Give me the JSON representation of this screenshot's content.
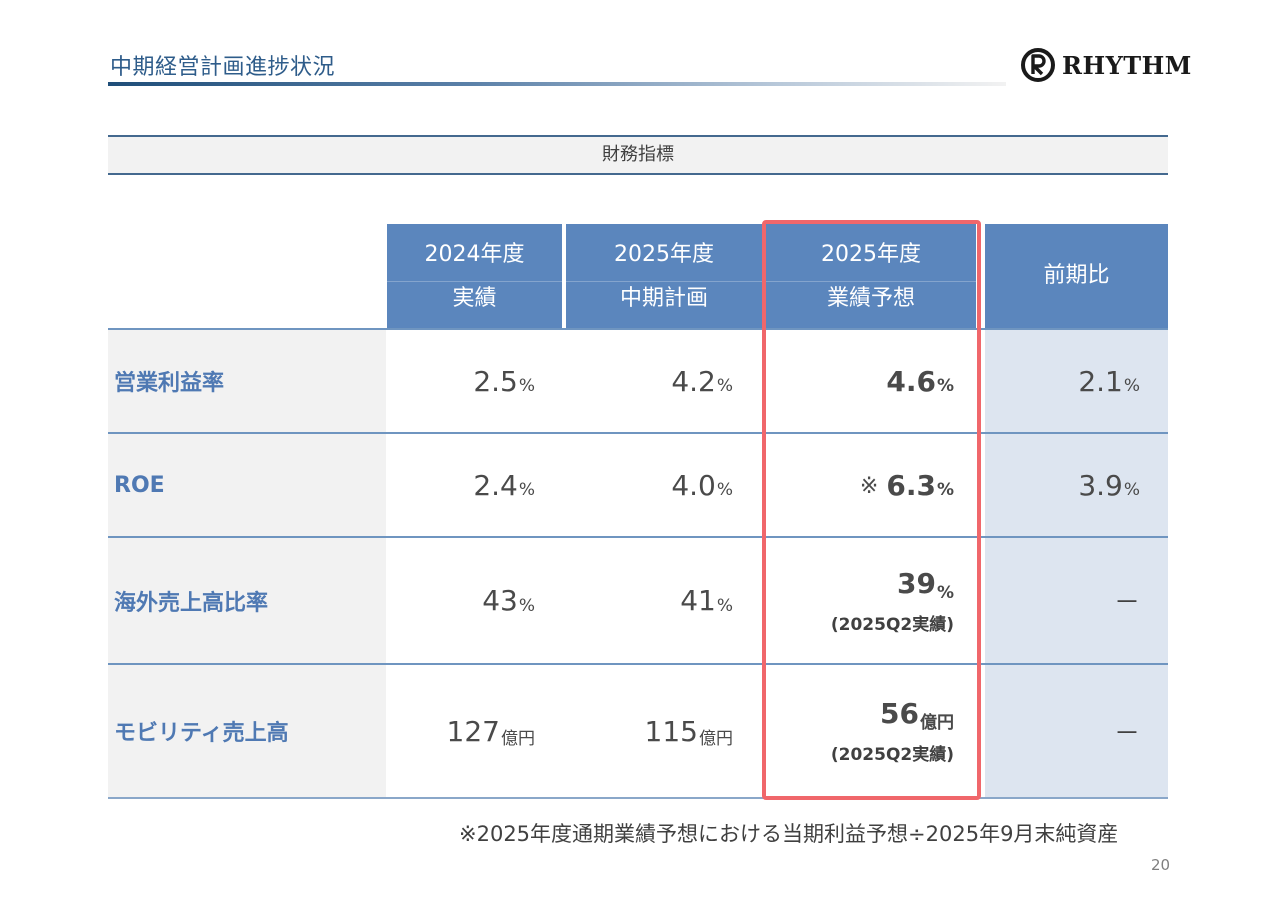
{
  "header": {
    "title": "中期経営計画進捗状況",
    "logo_text": "RHYTHM"
  },
  "section": {
    "title": "財務指標"
  },
  "table": {
    "columns": [
      {
        "line1": "2024年度",
        "line2": "実績"
      },
      {
        "line1": "2025年度",
        "line2": "中期計画"
      },
      {
        "line1": "2025年度",
        "line2": "業績予想"
      },
      {
        "line1": "前期比",
        "line2": ""
      }
    ],
    "rows": [
      {
        "label": "営業利益率",
        "c1": {
          "value": "2.5",
          "unit": "%"
        },
        "c2": {
          "value": "4.2",
          "unit": "%"
        },
        "c3": {
          "value": "4.6",
          "unit": "%",
          "mark": "",
          "sub": ""
        },
        "c4": {
          "value": "2.1",
          "unit": "%"
        }
      },
      {
        "label": "ROE",
        "c1": {
          "value": "2.4",
          "unit": "%"
        },
        "c2": {
          "value": "4.0",
          "unit": "%"
        },
        "c3": {
          "value": "6.3",
          "unit": "%",
          "mark": "※",
          "sub": ""
        },
        "c4": {
          "value": "3.9",
          "unit": "%"
        }
      },
      {
        "label": "海外売上高比率",
        "c1": {
          "value": "43",
          "unit": "%"
        },
        "c2": {
          "value": "41",
          "unit": "%"
        },
        "c3": {
          "value": "39",
          "unit": "%",
          "mark": "",
          "sub": "(2025Q2実績)"
        },
        "c4": {
          "value": "－",
          "unit": ""
        }
      },
      {
        "label": "モビリティ売上高",
        "c1": {
          "value": "127",
          "unit": "億円"
        },
        "c2": {
          "value": "115",
          "unit": "億円"
        },
        "c3": {
          "value": "56",
          "unit": "億円",
          "mark": "",
          "sub": "(2025Q2実績)"
        },
        "c4": {
          "value": "－",
          "unit": ""
        }
      }
    ]
  },
  "footnote": "※2025年度通期業績予想における当期利益予想÷2025年9月末純資産",
  "page_number": "20",
  "colors": {
    "accent": "#5b86bd",
    "label": "#4f79b3",
    "highlight": "#f0676b",
    "compare_bg": "#dde5f0"
  }
}
